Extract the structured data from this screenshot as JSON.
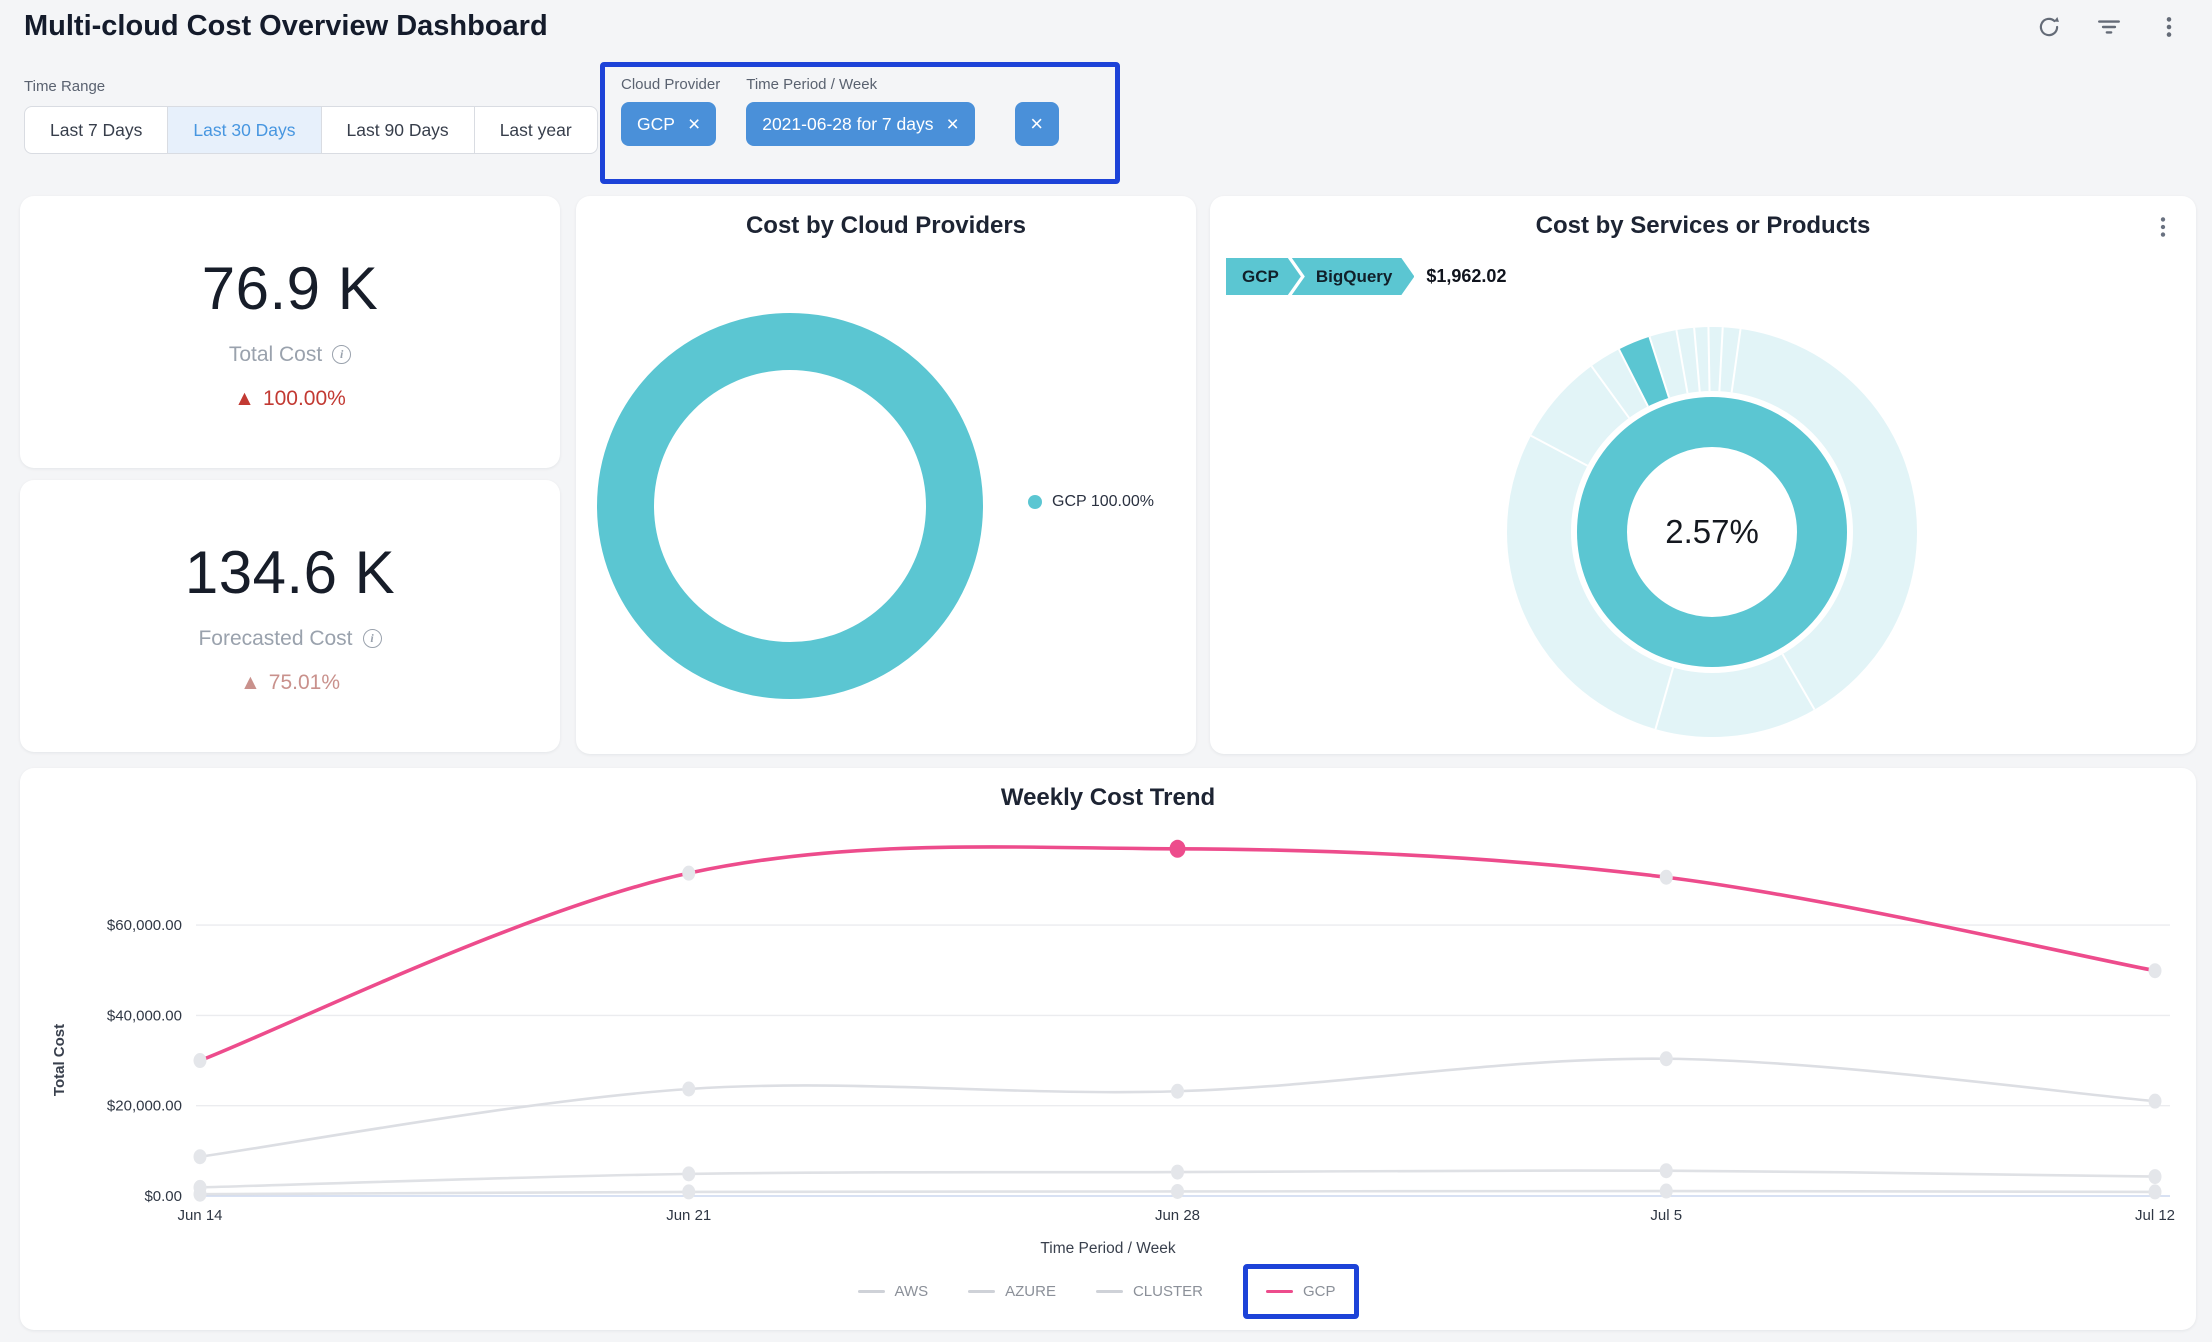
{
  "header": {
    "title": "Multi-cloud Cost Overview Dashboard",
    "actions": [
      {
        "name": "refresh"
      },
      {
        "name": "filter"
      },
      {
        "name": "more-options"
      }
    ]
  },
  "time_range": {
    "label": "Time Range",
    "options": [
      {
        "label": "Last 7 Days",
        "active": false
      },
      {
        "label": "Last 30 Days",
        "active": true
      },
      {
        "label": "Last 90 Days",
        "active": false
      },
      {
        "label": "Last year",
        "active": false
      }
    ],
    "active_color": "#4796e0",
    "active_bg": "#e7f0fb"
  },
  "applied_filters": {
    "groups": [
      {
        "label": "Cloud Provider",
        "chips": [
          {
            "text": "GCP"
          }
        ]
      },
      {
        "label": "Time Period / Week",
        "chips": [
          {
            "text": "2021-06-28 for 7 days"
          }
        ]
      }
    ],
    "clear_icon": "×",
    "remove_icon": "×",
    "chip_color": "#4a90d9",
    "annotation_color": "#1d43d8"
  },
  "kpis": [
    {
      "value": "76.9 K",
      "label": "Total Cost",
      "delta_arrow": "▲",
      "delta": "100.00%",
      "delta_color": "#c23a33"
    },
    {
      "value": "134.6 K",
      "label": "Forecasted Cost",
      "delta_arrow": "▲",
      "delta": "75.01%",
      "delta_color": "#c9918c"
    }
  ],
  "chart_data": [
    {
      "type": "pie",
      "variant": "donut",
      "title": "Cost by Cloud Providers",
      "series": [
        {
          "name": "GCP",
          "value": 100.0
        }
      ],
      "legend": [
        {
          "label": "GCP 100.00%",
          "color": "#5bc6d2"
        }
      ],
      "color": "#5bc6d2",
      "legend_position": "right"
    },
    {
      "type": "pie",
      "variant": "sunburst",
      "title": "Cost by Services or Products",
      "breadcrumb": [
        {
          "label": "GCP"
        },
        {
          "label": "BigQuery"
        }
      ],
      "breadcrumb_value": "$1,962.02",
      "center_label": "2.57%",
      "rings": {
        "inner": {
          "name": "GCP",
          "value": 100,
          "color": "#5bc6d2"
        },
        "outer": {
          "base_color": "#e2f4f7",
          "highlight": {
            "name": "BigQuery",
            "percent": 2.57,
            "color": "#5bc6d2",
            "start_angle": -27
          },
          "separator_angles": [
            -62,
            -36,
            -27,
            -17.75,
            -10,
            -5,
            -1,
            3,
            8,
            150,
            196
          ]
        }
      }
    },
    {
      "type": "line",
      "title": "Weekly Cost Trend",
      "x": [
        "Jun 14",
        "Jun 21",
        "Jun 28",
        "Jul 5",
        "Jul 12"
      ],
      "series": [
        {
          "name": "AWS",
          "color": "#e0e2e6",
          "legend_color": "#cfd2d8",
          "values": [
            400,
            900,
            1000,
            1100,
            900
          ]
        },
        {
          "name": "AZURE",
          "color": "#dfe1e5",
          "legend_color": "#cfd2d8",
          "values": [
            1900,
            4900,
            5300,
            5600,
            4300
          ]
        },
        {
          "name": "CLUSTER",
          "color": "#dcdee3",
          "legend_color": "#cfd2d8",
          "values": [
            8700,
            23700,
            23200,
            30400,
            21000
          ]
        },
        {
          "name": "GCP",
          "color": "#ed4c8c",
          "legend_color": "#ed4c8c",
          "values": [
            30000,
            71500,
            76900,
            70600,
            49900
          ]
        }
      ],
      "highlight": {
        "series": "GCP",
        "x_index": 2
      },
      "xlabel": "Time Period / Week",
      "ylabel": "Total Cost",
      "yticks": [
        {
          "value": 0,
          "label": "$0.00"
        },
        {
          "value": 20000,
          "label": "$20,000.00"
        },
        {
          "value": 40000,
          "label": "$40,000.00"
        },
        {
          "value": 60000,
          "label": "$60,000.00"
        }
      ],
      "ylim": [
        0,
        83000
      ],
      "grid": true,
      "legend_position": "bottom",
      "legend_annotated": "GCP",
      "dot_color": "#e4e6ea",
      "zero_line_color": "#ccd7ef",
      "grid_color": "#ebecef"
    }
  ]
}
